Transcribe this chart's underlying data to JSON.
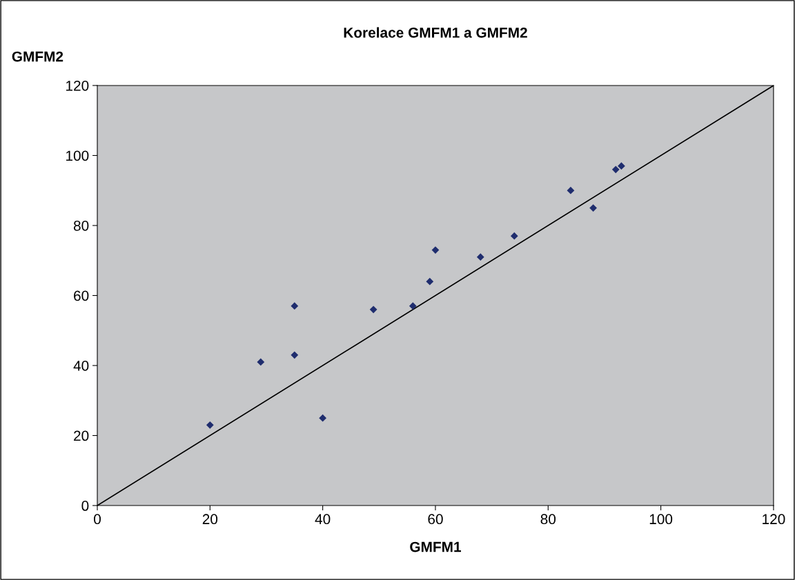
{
  "chart_data": {
    "type": "scatter",
    "title": "Korelace GMFM1 a GMFM2",
    "xlabel": "GMFM1",
    "ylabel": "GMFM2",
    "x": [
      20,
      29,
      35,
      35,
      40,
      49,
      56,
      59,
      60,
      68,
      74,
      84,
      88,
      92,
      93
    ],
    "series": [
      {
        "color": "#1f2d6e",
        "values": [
          23,
          41,
          57,
          43,
          25,
          56,
          57,
          64,
          73,
          71,
          77,
          90,
          85,
          96,
          97
        ]
      },
      {
        "type": "line",
        "color": "#000000",
        "x": [
          0,
          120
        ],
        "values": [
          0,
          120
        ],
        "marker": "none"
      }
    ],
    "marker": "diamond",
    "xlim": [
      0,
      120
    ],
    "ylim": [
      0,
      120
    ],
    "xticks": [
      0,
      20,
      40,
      60,
      80,
      100,
      120
    ],
    "yticks": [
      0,
      20,
      40,
      60,
      80,
      100,
      120
    ],
    "grid": false
  }
}
